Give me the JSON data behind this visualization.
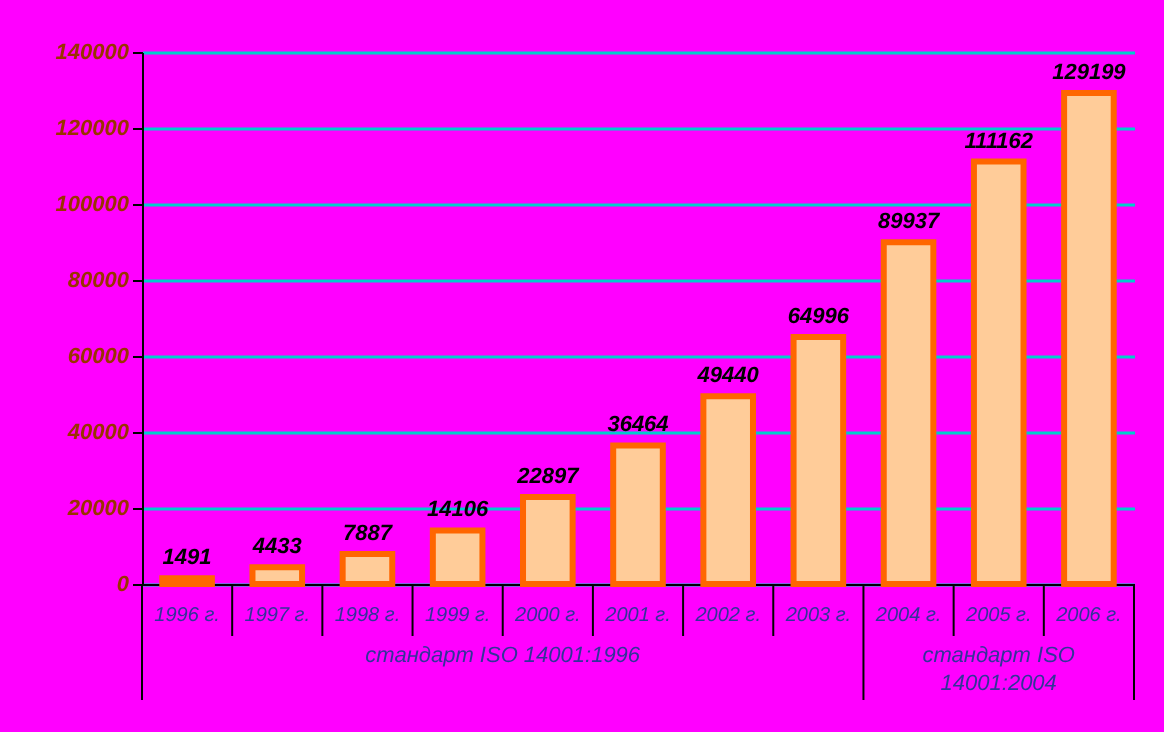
{
  "chart_data": {
    "type": "bar",
    "categories": [
      "1996 г.",
      "1997 г.",
      "1998 г.",
      "1999 г.",
      "2000 г.",
      "2001 г.",
      "2002 г.",
      "2003 г.",
      "2004 г.",
      "2005 г.",
      "2006 г."
    ],
    "values": [
      1491,
      4433,
      7887,
      14106,
      22897,
      36464,
      49440,
      64996,
      89937,
      111162,
      129199
    ],
    "color": "#ffcc99",
    "ylim": [
      0,
      140000
    ],
    "yticks": [
      0,
      20000,
      40000,
      60000,
      80000,
      100000,
      120000,
      140000
    ],
    "grid": "y",
    "data_labels": true,
    "annotations": [
      "стандарт ISO 14001:1996",
      "стандарт ISO 14001:2004"
    ]
  }
}
